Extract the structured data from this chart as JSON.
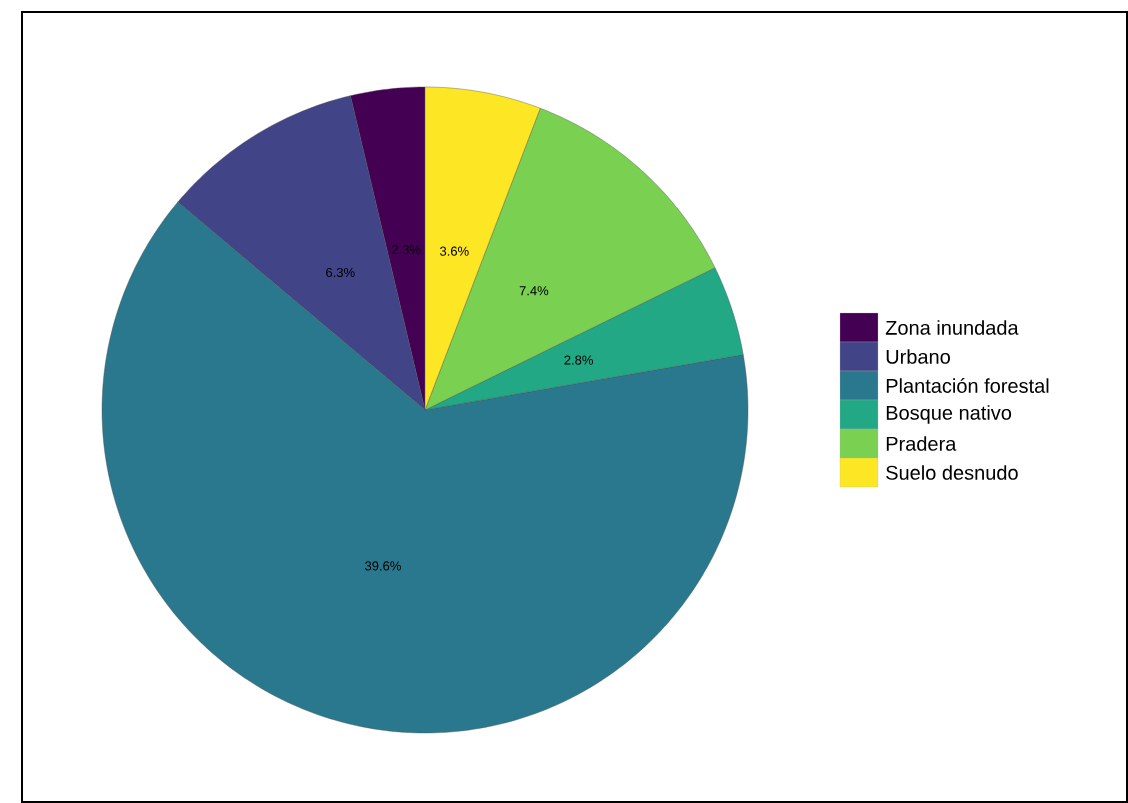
{
  "chart_data": {
    "type": "pie",
    "categories": [
      "Zona inundada",
      "Urbano",
      "Plantación forestal",
      "Bosque nativo",
      "Pradera",
      "Suelo desnudo"
    ],
    "values": [
      2.3,
      6.3,
      39.6,
      2.8,
      7.4,
      3.6
    ],
    "value_labels": [
      "2.3%",
      "6.3%",
      "39.6%",
      "2.8%",
      "7.4%",
      "3.6%"
    ],
    "colors": [
      "#440154",
      "#414487",
      "#2a788e",
      "#22a884",
      "#7ad151",
      "#fde725"
    ],
    "legend": "right"
  }
}
